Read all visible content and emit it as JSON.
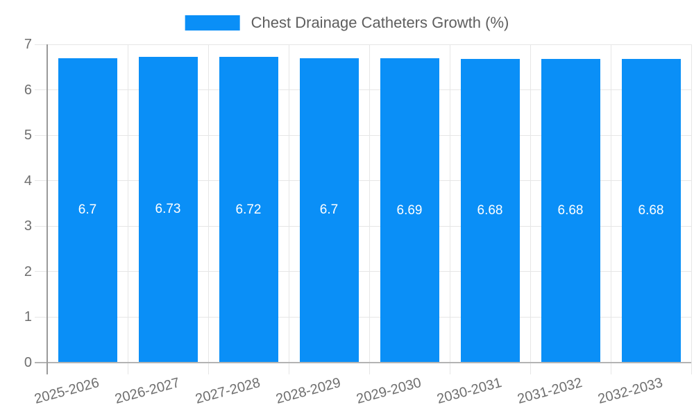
{
  "legend": {
    "series_label": "Chest Drainage Catheters Growth (%)"
  },
  "chart_data": {
    "type": "bar",
    "title": "Chest Drainage Catheters Growth (%)",
    "categories": [
      "2025-2026",
      "2026-2027",
      "2027-2028",
      "2028-2029",
      "2029-2030",
      "2030-2031",
      "2031-2032",
      "2032-2033"
    ],
    "values": [
      6.7,
      6.73,
      6.72,
      6.7,
      6.69,
      6.68,
      6.68,
      6.68
    ],
    "xlabel": "",
    "ylabel": "",
    "ylim": [
      0,
      7
    ],
    "ytick_step": 1,
    "ytick_labels": [
      "0",
      "1",
      "2",
      "3",
      "4",
      "5",
      "6",
      "7"
    ],
    "grid": true,
    "legend_position": "top-center",
    "value_labels_inside_bars": true,
    "xtick_rotation_deg": -15,
    "colors": {
      "bar": "#0a8ff7",
      "bar_label": "#ffffff",
      "axis_text": "#6e6e6e",
      "grid_line": "#e6e6e6",
      "axis_line": "#9a9a9a",
      "baseline": "#b3b3b3",
      "legend_text": "#5e5e5e"
    }
  }
}
